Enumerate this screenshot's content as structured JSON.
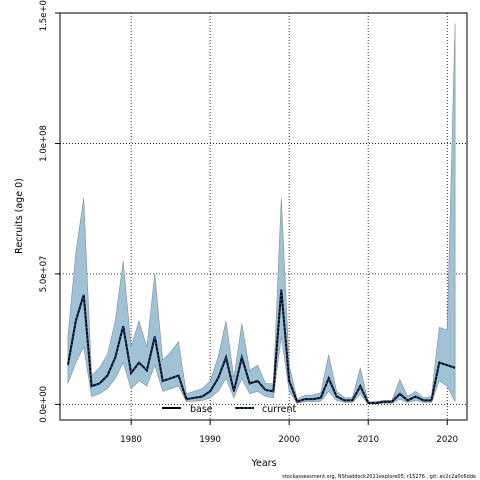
{
  "chart_data": {
    "type": "area",
    "xlabel": "Years",
    "ylabel": "Recruits (age 0)",
    "xlim": [
      1971,
      2022.5
    ],
    "ylim": [
      -6000000,
      150000000
    ],
    "x_ticks": [
      1980,
      1990,
      2000,
      2010,
      2020
    ],
    "x_tick_labels": [
      "1980",
      "1990",
      "2000",
      "2010",
      "2020"
    ],
    "y_ticks": [
      0,
      50000000,
      100000000,
      150000000
    ],
    "y_tick_labels": [
      "0.0e+00",
      "5.0e+07",
      "1.0e+08",
      "1.5e+08"
    ],
    "grid": true,
    "band_color": "#9fc2d6",
    "band_edge_color": "#7f8f98",
    "current_line_color": "#000000",
    "current_dot_color": "#1f4e8c",
    "legend": {
      "placement": "bottom",
      "entries": [
        {
          "label": "base",
          "style": "solid"
        },
        {
          "label": "current",
          "style": "dotted"
        }
      ]
    },
    "footer": "stockassessment.org, NShaddock2021explore05, r15276 ,  git: ec2c2a0c6dde",
    "x": [
      1972,
      1973,
      1974,
      1975,
      1976,
      1977,
      1978,
      1979,
      1980,
      1981,
      1982,
      1983,
      1984,
      1985,
      1986,
      1987,
      1988,
      1989,
      1990,
      1991,
      1992,
      1993,
      1994,
      1995,
      1996,
      1997,
      1998,
      1999,
      2000,
      2001,
      2002,
      2003,
      2004,
      2005,
      2006,
      2007,
      2008,
      2009,
      2010,
      2011,
      2012,
      2013,
      2014,
      2015,
      2016,
      2017,
      2018,
      2019,
      2020,
      2021
    ],
    "series": [
      {
        "name": "current",
        "values": [
          15000000,
          32000000,
          42000000,
          7000000,
          8000000,
          11000000,
          18000000,
          30000000,
          12000000,
          16000000,
          13000000,
          26000000,
          9000000,
          10000000,
          11000000,
          2000000,
          2500000,
          3000000,
          5000000,
          10000000,
          18000000,
          5000000,
          18000000,
          8000000,
          9000000,
          5500000,
          5000000,
          44000000,
          9000000,
          1000000,
          2000000,
          2000000,
          2500000,
          10000000,
          3000000,
          1500000,
          1500000,
          7000000,
          500000,
          500000,
          1000000,
          1000000,
          4000000,
          1500000,
          3000000,
          1500000,
          1500000,
          16000000,
          15000000,
          14000000
        ],
        "lower": [
          8000000,
          16000000,
          22000000,
          3000000,
          4000000,
          6000000,
          10000000,
          16000000,
          6000000,
          9000000,
          7000000,
          15000000,
          5000000,
          6000000,
          7000000,
          1000000,
          1200000,
          1500000,
          2500000,
          5000000,
          10000000,
          2500000,
          10000000,
          4000000,
          5000000,
          3000000,
          2500000,
          26000000,
          5000000,
          400000,
          1000000,
          1000000,
          1200000,
          5000000,
          1500000,
          800000,
          800000,
          4000000,
          200000,
          200000,
          400000,
          400000,
          2000000,
          700000,
          1500000,
          700000,
          700000,
          9000000,
          7000000,
          1000000
        ],
        "upper": [
          26000000,
          58000000,
          79000000,
          11000000,
          14000000,
          19000000,
          32000000,
          55000000,
          22000000,
          32000000,
          22000000,
          50000000,
          17000000,
          20000000,
          24000000,
          4000000,
          5000000,
          6000000,
          9000000,
          18000000,
          32000000,
          10000000,
          31000000,
          13000000,
          15000000,
          8000000,
          8000000,
          79000000,
          15000000,
          2000000,
          3500000,
          3500000,
          4500000,
          19000000,
          5000000,
          2500000,
          2500000,
          14000000,
          1000000,
          1000000,
          1500000,
          1500000,
          9500000,
          3000000,
          5000000,
          2500000,
          3000000,
          29500000,
          28500000,
          146000000
        ]
      }
    ]
  }
}
